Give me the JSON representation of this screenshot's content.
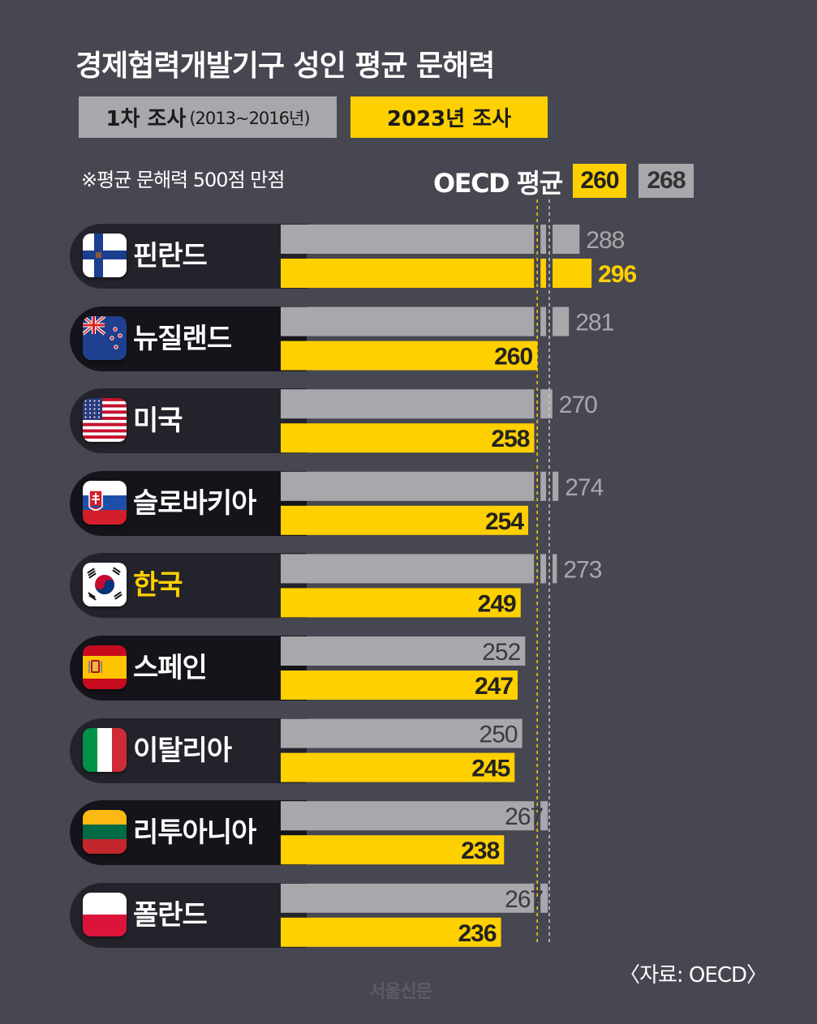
{
  "title": "경제협력개발기구 성인 평균 문해력",
  "legend": {
    "first_label": "1차 조사",
    "first_period": "(2013~2016년)",
    "second_label": "2023년 조사"
  },
  "note": "※평균 문해력 500점 만점",
  "oecd": {
    "label": "OECD 평균",
    "second_value": "260",
    "first_value": "268"
  },
  "source": "〈자료: OECD〉",
  "watermark": "서울신문",
  "colors": {
    "first": "#a8a8ac",
    "second": "#ffd000",
    "background": "#474751"
  },
  "chart_data": {
    "type": "bar",
    "orientation": "horizontal",
    "title": "경제협력개발기구 성인 평균 문해력",
    "categories": [
      "핀란드",
      "뉴질랜드",
      "미국",
      "슬로바키아",
      "한국",
      "스페인",
      "이탈리아",
      "리투아니아",
      "폴란드"
    ],
    "series": [
      {
        "name": "1차 조사(2013~2016년)",
        "values": [
          288,
          281,
          270,
          274,
          273,
          252,
          250,
          267,
          267
        ]
      },
      {
        "name": "2023년 조사",
        "values": [
          296,
          260,
          258,
          254,
          249,
          247,
          245,
          238,
          236
        ]
      }
    ],
    "reference_lines": [
      {
        "name": "OECD 평균 2023년 조사",
        "value": 260
      },
      {
        "name": "OECD 평균 1차 조사",
        "value": 268
      }
    ],
    "highlight_category": "한국",
    "flags": [
      "finland-flag-icon",
      "new-zealand-flag-icon",
      "usa-flag-icon",
      "slovakia-flag-icon",
      "korea-flag-icon",
      "spain-flag-icon",
      "italy-flag-icon",
      "lithuania-flag-icon",
      "poland-flag-icon"
    ],
    "legend_position": "top-left"
  }
}
